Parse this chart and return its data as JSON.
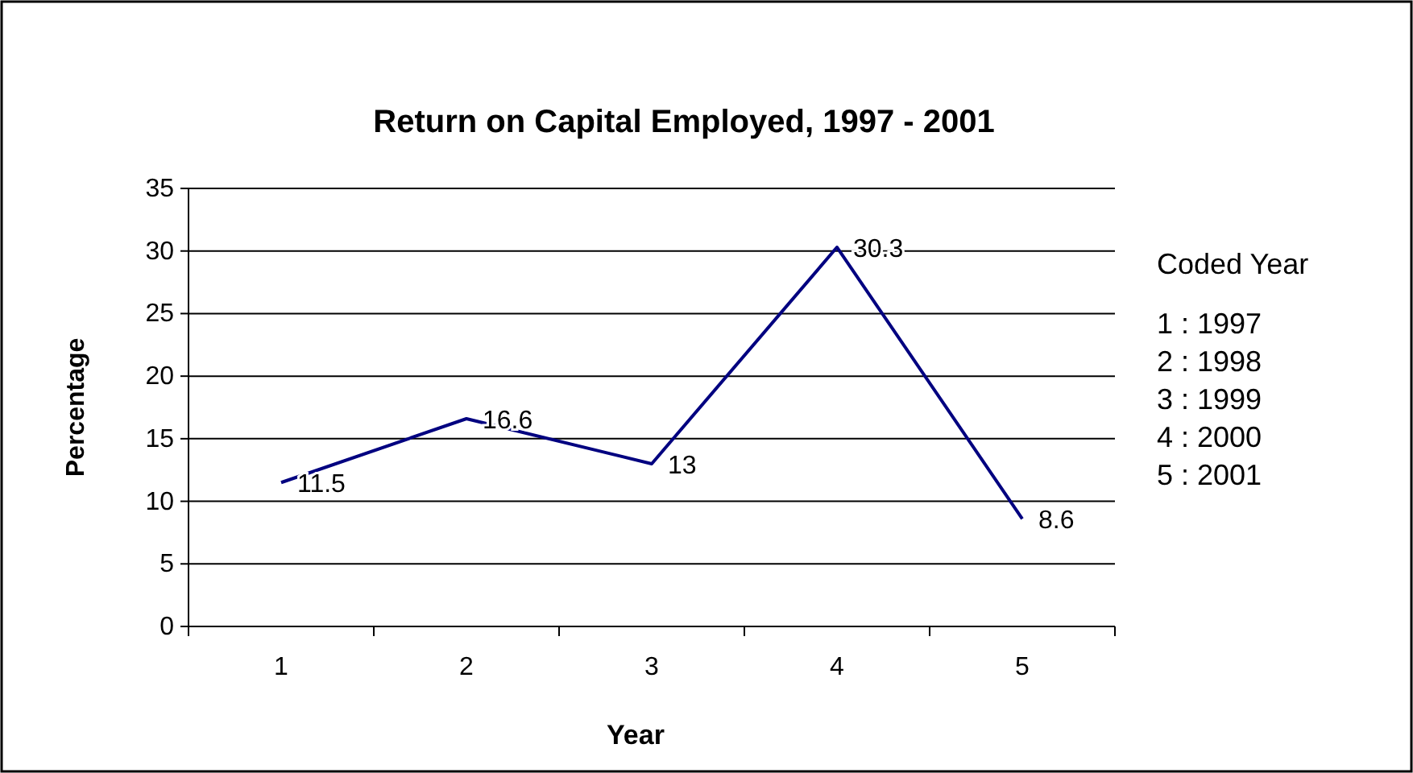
{
  "chart_data": {
    "type": "line",
    "title": "Return on Capital Employed, 1997 - 2001",
    "xlabel": "Year",
    "ylabel": "Percentage",
    "categories": [
      "1",
      "2",
      "3",
      "4",
      "5"
    ],
    "series": [
      {
        "color": "#000080",
        "values": [
          11.5,
          16.6,
          13,
          30.3,
          8.6
        ]
      }
    ],
    "ylim": [
      0,
      35
    ],
    "yticks": [
      0,
      5,
      10,
      15,
      20,
      25,
      30,
      35
    ],
    "grid": "y",
    "data_labels": true,
    "marker": "none",
    "line_style": "solid",
    "annotations": [
      "Coded Year",
      "1 : 1997",
      "2 : 1998",
      "3 : 1999",
      "4 : 2000",
      "5 : 2001"
    ]
  }
}
